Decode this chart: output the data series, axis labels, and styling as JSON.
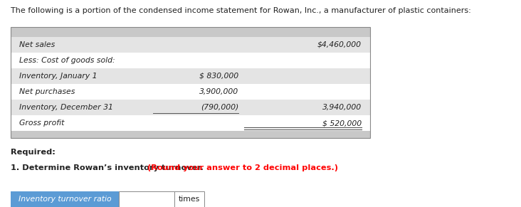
{
  "header_text": "The following is a portion of the condensed income statement for Rowan, Inc., a manufacturer of plastic containers:",
  "table_rows": [
    {
      "label": "Net sales",
      "col1": "",
      "col2": "$4,460,000",
      "indent": 0,
      "shade": true
    },
    {
      "label": "Less: Cost of goods sold:",
      "col1": "",
      "col2": "",
      "indent": 0,
      "shade": false
    },
    {
      "label": "Inventory, January 1",
      "col1": "$ 830,000",
      "col2": "",
      "indent": 0,
      "shade": true
    },
    {
      "label": "Net purchases",
      "col1": "3,900,000",
      "col2": "",
      "indent": 0,
      "shade": false
    },
    {
      "label": "Inventory, December 31",
      "col1": "(790,000)",
      "col2": "3,940,000",
      "indent": 0,
      "shade": true
    },
    {
      "label": "Gross profit",
      "col1": "",
      "col2": "$ 520,000",
      "indent": 0,
      "shade": false
    }
  ],
  "required_label": "Required:",
  "instruction_normal": "1. Determine Rowan’s inventory turnover. ",
  "instruction_bold_red": "(Round your answer to 2 decimal places.)",
  "input_label": "Inventory turnover ratio",
  "times_label": "times",
  "bg_color": "#ffffff",
  "table_top_shade": "#c8c8c8",
  "row_shade_color": "#e4e4e4",
  "table_bot_shade": "#c8c8c8",
  "table_border_color": "#888888",
  "input_label_bg": "#5b9bd5",
  "input_label_text_color": "#ffffff",
  "font_size_header": 8.0,
  "font_size_table": 7.8,
  "font_size_required": 8.2,
  "font_size_input": 7.8
}
